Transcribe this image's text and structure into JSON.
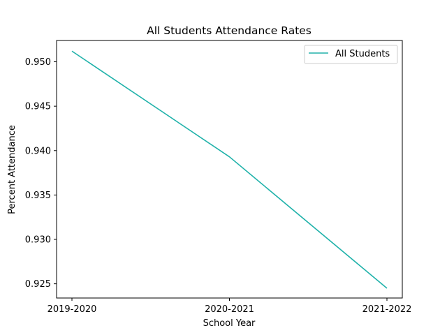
{
  "chart_data": {
    "type": "line",
    "title": "All Students Attendance Rates",
    "xlabel": "School Year",
    "ylabel": "Percent Attendance",
    "categories": [
      "2019-2020",
      "2020-2021",
      "2021-2022"
    ],
    "series": [
      {
        "name": "All Students",
        "values": [
          0.9512,
          0.9393,
          0.9245
        ],
        "color": "#20b2aa"
      }
    ],
    "ylim": [
      0.9234,
      0.9524
    ],
    "yticks": [
      0.925,
      0.93,
      0.935,
      0.94,
      0.945,
      0.95
    ],
    "ytick_labels": [
      "0.925",
      "0.930",
      "0.935",
      "0.940",
      "0.945",
      "0.950"
    ],
    "grid": false,
    "legend_position": "top-right"
  }
}
